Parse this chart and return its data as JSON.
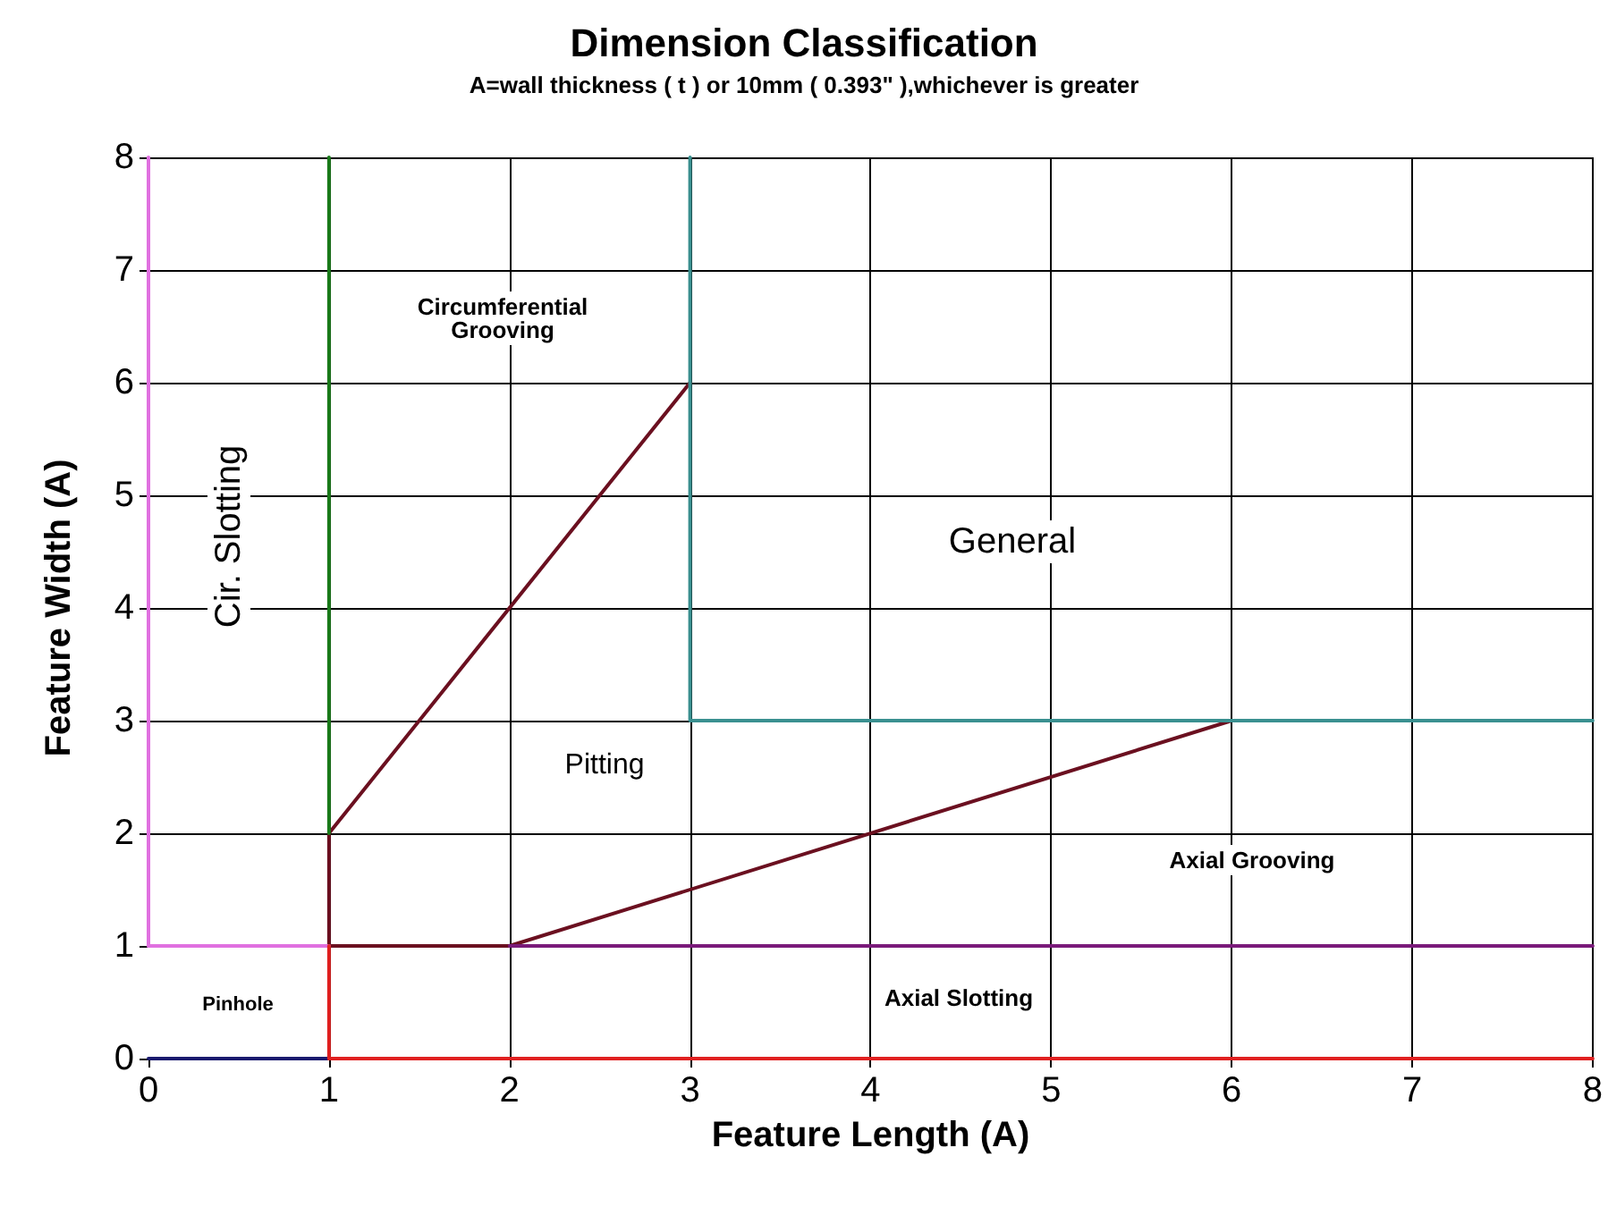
{
  "chart_data": {
    "type": "line",
    "title": "Dimension Classification",
    "subtitle": "A=wall thickness ( t ) or 10mm ( 0.393\" ),whichever is greater",
    "xlabel": "Feature Length (A)",
    "ylabel": "Feature Width (A)",
    "series": [
      {
        "color": "#1a1a6e",
        "x": [
          0,
          1
        ],
        "values": [
          0,
          0
        ]
      },
      {
        "color": "#6b1020",
        "x": [
          3,
          1,
          1,
          2,
          6
        ],
        "values": [
          6,
          2,
          1,
          1,
          3
        ]
      },
      {
        "color": "#1a7a1a",
        "x": [
          1,
          1
        ],
        "values": [
          2,
          8
        ]
      },
      {
        "color": "#7a1a7a",
        "x": [
          2,
          8
        ],
        "values": [
          1,
          1
        ]
      },
      {
        "color": "#3a9090",
        "x": [
          3,
          3,
          8
        ],
        "values": [
          8,
          3,
          3
        ]
      },
      {
        "color": "#e070e0",
        "x": [
          0,
          0
        ],
        "values": [
          8,
          1
        ]
      },
      {
        "color": "#e070e0",
        "x": [
          0,
          1
        ],
        "values": [
          1,
          1
        ]
      },
      {
        "color": "#e02020",
        "x": [
          1,
          1
        ],
        "values": [
          1,
          0
        ]
      },
      {
        "color": "#e02020",
        "x": [
          1,
          8
        ],
        "values": [
          0,
          0
        ]
      }
    ],
    "annotations": [
      "Circumferential\nGrooving",
      "Cir. Slotting",
      "General",
      "Pitting",
      "Axial Grooving",
      "Axial Slotting",
      "Pinhole"
    ],
    "xlim": [
      0,
      8
    ],
    "xticks": [
      0,
      1,
      2,
      3,
      4,
      5,
      6,
      7,
      8
    ],
    "ylim": [
      0,
      8
    ],
    "yticks": [
      0,
      1,
      2,
      3,
      4,
      5,
      6,
      7,
      8
    ],
    "grid": true,
    "marker": "none",
    "line_style": "solid"
  }
}
